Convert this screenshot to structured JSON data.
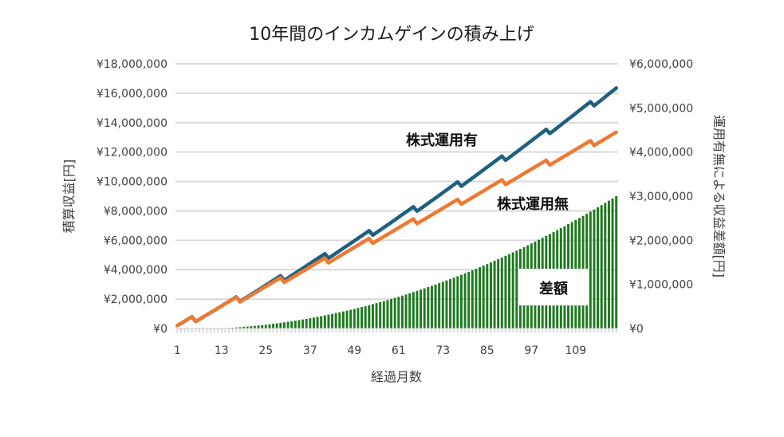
{
  "chart_data": {
    "type": "line+bar",
    "title": "10年間のインカムゲインの積み上げ",
    "xlabel": "経過月数",
    "ylabel": "積算収益[円]",
    "y2label": "運用有無による収益差額[円]",
    "value_scale": 1000,
    "x_ticks": [
      "1",
      "13",
      "25",
      "37",
      "49",
      "61",
      "73",
      "85",
      "97",
      "109"
    ],
    "y_ticks": [
      "¥0",
      "¥2,000,000",
      "¥4,000,000",
      "¥6,000,000",
      "¥8,000,000",
      "¥10,000,000",
      "¥12,000,000",
      "¥14,000,000",
      "¥16,000,000",
      "¥18,000,000"
    ],
    "y2_ticks": [
      "¥0",
      "¥1,000,000",
      "¥2,000,000",
      "¥3,000,000",
      "¥4,000,000",
      "¥5,000,000",
      "¥6,000,000"
    ],
    "ylim": [
      0,
      18000000
    ],
    "y2lim": [
      0,
      6000000
    ],
    "grid": true,
    "months": 120,
    "series": [
      {
        "name": "株式運用有",
        "axis": "primary",
        "kind": "line",
        "color": "#1f5f7f",
        "values": [
          200,
          350,
          500,
          650,
          800,
          480,
          630,
          780,
          930,
          1080,
          1230,
          1380,
          1534,
          1689,
          1843,
          1999,
          2155,
          1841,
          1998,
          2155,
          2312,
          2470,
          2629,
          2788,
          2947,
          3107,
          3267,
          3428,
          3589,
          3281,
          3443,
          3605,
          3768,
          3932,
          4095,
          4260,
          4424,
          4590,
          4755,
          4921,
          5088,
          4785,
          4952,
          5120,
          5288,
          5457,
          5626,
          5795,
          5965,
          6136,
          6307,
          6478,
          6650,
          6352,
          6525,
          6698,
          6871,
          7045,
          7220,
          7395,
          7570,
          7746,
          7922,
          8099,
          8276,
          7984,
          8162,
          8340,
          8519,
          8698,
          8878,
          9058,
          9239,
          9420,
          9601,
          9784,
          9966,
          9679,
          9862,
          10046,
          10230,
          10415,
          10600,
          10786,
          10971,
          11158,
          11345,
          11532,
          11720,
          11438,
          11627,
          11816,
          12006,
          12196,
          12386,
          12577,
          12768,
          12960,
          13152,
          13345,
          13538,
          13261,
          13455,
          13650,
          13845,
          14040,
          14236,
          14432,
          14628,
          14826,
          15023,
          15221,
          15419,
          15148,
          15348,
          15547,
          15748,
          15948,
          16149,
          16350
        ]
      },
      {
        "name": "株式運用無",
        "axis": "primary",
        "kind": "line",
        "color": "#ed7a32",
        "values": [
          200,
          350,
          500,
          650,
          800,
          480,
          630,
          780,
          930,
          1080,
          1230,
          1380,
          1530,
          1680,
          1830,
          1980,
          2130,
          1810,
          1960,
          2110,
          2260,
          2410,
          2560,
          2710,
          2860,
          3010,
          3160,
          3310,
          3460,
          3140,
          3290,
          3440,
          3590,
          3740,
          3890,
          4040,
          4190,
          4340,
          4490,
          4640,
          4790,
          4470,
          4620,
          4770,
          4920,
          5070,
          5220,
          5370,
          5520,
          5670,
          5820,
          5970,
          6120,
          5800,
          5950,
          6100,
          6250,
          6400,
          6550,
          6700,
          6850,
          7000,
          7150,
          7300,
          7450,
          7130,
          7280,
          7430,
          7580,
          7730,
          7880,
          8030,
          8180,
          8330,
          8480,
          8630,
          8780,
          8460,
          8610,
          8760,
          8910,
          9060,
          9210,
          9360,
          9510,
          9660,
          9810,
          9960,
          10110,
          9790,
          9940,
          10090,
          10240,
          10390,
          10540,
          10690,
          10840,
          10990,
          11140,
          11290,
          11440,
          11120,
          11270,
          11420,
          11570,
          11720,
          11870,
          12020,
          12170,
          12320,
          12470,
          12620,
          12770,
          12450,
          12600,
          12750,
          12900,
          13050,
          13200,
          13350
        ]
      },
      {
        "name": "差額",
        "axis": "secondary",
        "kind": "bar",
        "color": "#1e7a1e",
        "values": [
          0,
          0,
          0,
          0,
          0,
          0,
          0,
          0,
          0,
          0,
          0,
          0,
          4,
          9,
          13,
          19,
          25,
          31,
          38,
          45,
          52,
          60,
          69,
          78,
          87,
          97,
          107,
          118,
          129,
          141,
          153,
          165,
          178,
          192,
          205,
          220,
          234,
          250,
          265,
          281,
          298,
          315,
          332,
          350,
          368,
          387,
          406,
          425,
          445,
          466,
          487,
          508,
          530,
          552,
          575,
          598,
          621,
          645,
          670,
          695,
          720,
          746,
          772,
          799,
          826,
          854,
          882,
          910,
          939,
          968,
          998,
          1028,
          1059,
          1090,
          1121,
          1154,
          1186,
          1219,
          1252,
          1286,
          1320,
          1355,
          1390,
          1426,
          1461,
          1498,
          1535,
          1572,
          1610,
          1648,
          1687,
          1726,
          1766,
          1806,
          1846,
          1887,
          1928,
          1970,
          2012,
          2055,
          2098,
          2141,
          2185,
          2230,
          2275,
          2320,
          2366,
          2412,
          2458,
          2506,
          2553,
          2601,
          2649,
          2698,
          2748,
          2797,
          2848,
          2898,
          2949,
          3000
        ]
      }
    ]
  }
}
